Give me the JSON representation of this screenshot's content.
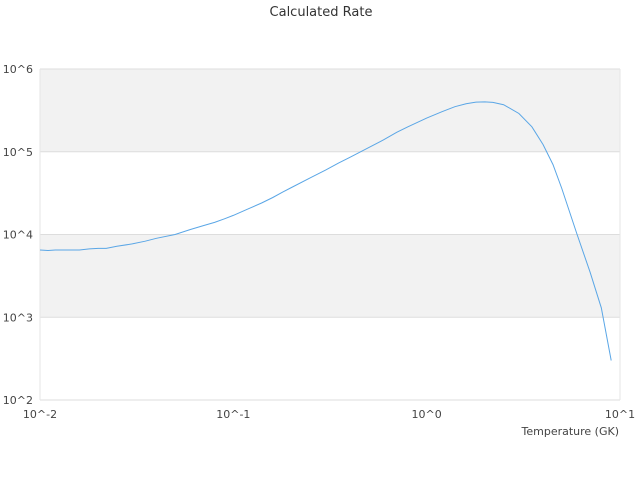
{
  "chart_data": {
    "type": "line",
    "title": "Calculated Rate",
    "xlabel": "Temperature (GK)",
    "ylabel": "",
    "x_scale": "log",
    "y_scale": "log",
    "xlim": [
      0.01,
      10
    ],
    "ylim": [
      100,
      1000000
    ],
    "x_ticks": [
      "10^-2",
      "10^-1",
      "10^0",
      "10^1"
    ],
    "y_ticks": [
      "10^2",
      "10^3",
      "10^4",
      "10^5",
      "10^6"
    ],
    "grid": "horizontal bands",
    "band_color": "#f2f2f2",
    "series": [
      {
        "color": "#5aa6e6",
        "x": [
          0.01,
          0.011,
          0.012,
          0.014,
          0.016,
          0.018,
          0.02,
          0.022,
          0.025,
          0.03,
          0.035,
          0.04,
          0.05,
          0.06,
          0.07,
          0.08,
          0.09,
          0.1,
          0.12,
          0.14,
          0.16,
          0.18,
          0.2,
          0.25,
          0.3,
          0.35,
          0.4,
          0.5,
          0.6,
          0.7,
          0.8,
          1.0,
          1.2,
          1.4,
          1.6,
          1.8,
          2.0,
          2.2,
          2.5,
          3.0,
          3.5,
          4.0,
          4.5,
          5.0,
          6.0,
          7.0,
          8.0,
          9.0
        ],
        "y": [
          6500,
          6400,
          6500,
          6500,
          6500,
          6700,
          6800,
          6800,
          7200,
          7700,
          8300,
          9000,
          10000,
          11500,
          12800,
          14000,
          15500,
          17000,
          20500,
          24000,
          28000,
          32500,
          37000,
          48500,
          60000,
          73000,
          85500,
          112000,
          140000,
          172000,
          200000,
          255000,
          305000,
          350000,
          380000,
          398000,
          400000,
          395000,
          370000,
          290000,
          200000,
          122000,
          70000,
          36000,
          10000,
          3500,
          1300,
          300
        ]
      }
    ]
  }
}
